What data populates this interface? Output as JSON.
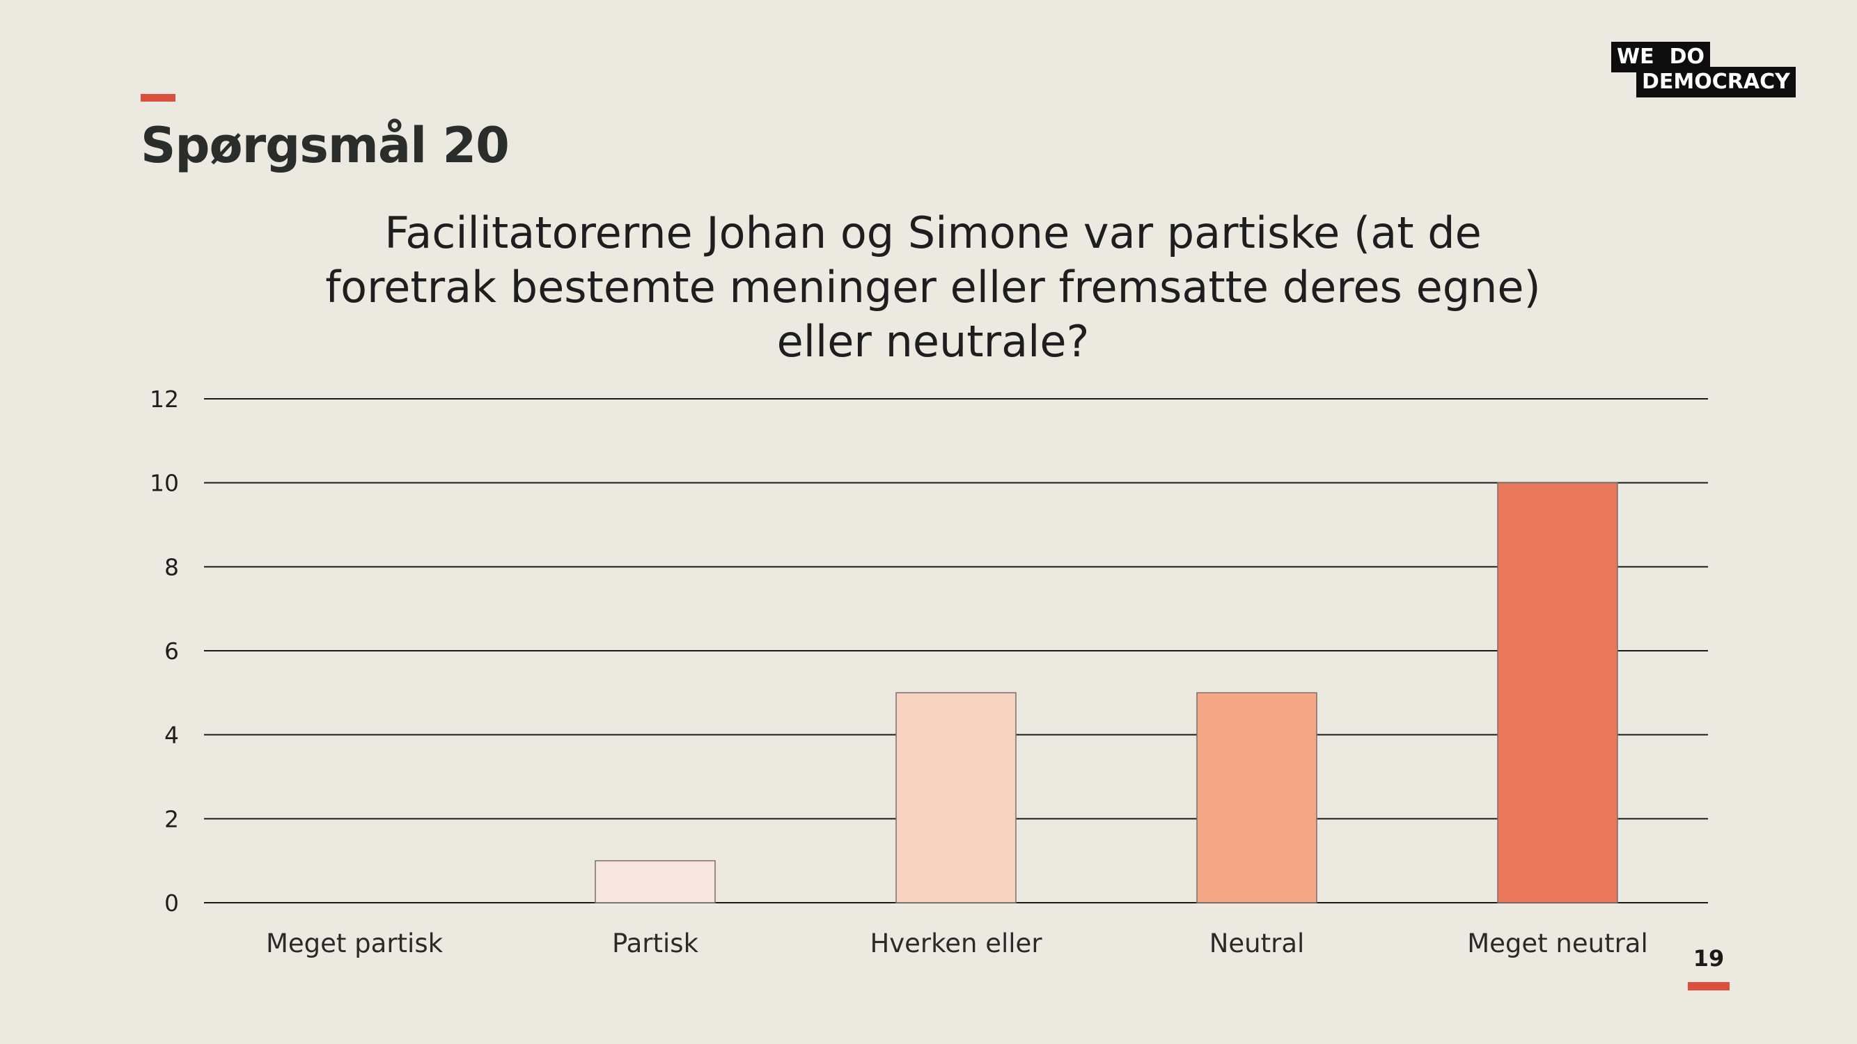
{
  "slide": {
    "heading": "Spørgsmål 20",
    "page_number": "19",
    "accent_color": "#D9503F"
  },
  "logo": {
    "line1_word1": "WE",
    "line1_word2": "DO",
    "line2": "DEMOCRACY"
  },
  "chart_data": {
    "type": "bar",
    "title_lines": [
      "Facilitatorerne Johan og Simone var partiske (at de",
      "foretrak bestemte meninger eller fremsatte deres egne)",
      "eller neutrale?"
    ],
    "categories": [
      "Meget partisk",
      "Partisk",
      "Hverken eller",
      "Neutral",
      "Meget neutral"
    ],
    "values": [
      0,
      1,
      5,
      5,
      10
    ],
    "colors": [
      "#F7E8E1",
      "#F6E6DF",
      "#F6D2C0",
      "#F5A885",
      "#E8775C"
    ],
    "ylim": [
      0,
      12
    ],
    "yticks": [
      0,
      2,
      4,
      6,
      8,
      10,
      12
    ],
    "grid": true,
    "xlabel": "",
    "ylabel": ""
  }
}
